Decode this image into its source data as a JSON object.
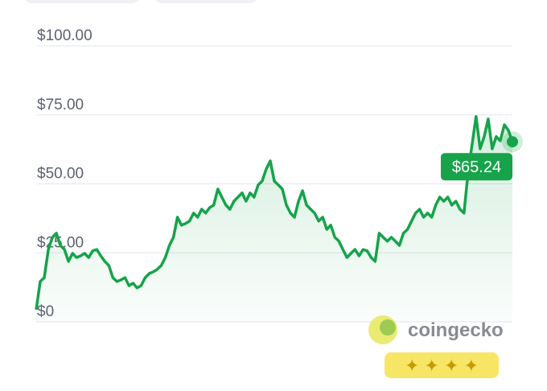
{
  "chart_data": {
    "type": "line",
    "values": [
      4.4,
      14.6,
      16.0,
      26.2,
      30.6,
      32.1,
      27.7,
      26.2,
      21.9,
      24.8,
      23.3,
      23.9,
      24.8,
      23.3,
      25.7,
      26.2,
      23.9,
      21.9,
      20.4,
      16.0,
      14.6,
      15.2,
      16.0,
      13.1,
      14.0,
      12.3,
      13.1,
      16.0,
      17.5,
      18.1,
      19.0,
      20.4,
      23.3,
      27.7,
      30.6,
      37.9,
      35.0,
      35.6,
      36.5,
      39.4,
      37.9,
      40.8,
      39.4,
      41.4,
      42.3,
      48.1,
      45.2,
      42.3,
      40.8,
      43.7,
      45.2,
      46.7,
      43.7,
      46.7,
      45.2,
      49.6,
      51.0,
      55.4,
      58.3,
      51.0,
      49.6,
      48.1,
      42.3,
      39.4,
      37.9,
      43.7,
      47.5,
      42.3,
      40.8,
      39.4,
      36.5,
      37.9,
      33.5,
      35.0,
      30.6,
      29.2,
      26.2,
      23.3,
      24.8,
      26.2,
      23.9,
      26.2,
      25.7,
      23.3,
      21.9,
      32.1,
      30.6,
      29.2,
      30.6,
      29.2,
      27.7,
      32.1,
      33.5,
      36.5,
      39.4,
      40.8,
      37.9,
      39.4,
      37.9,
      42.3,
      45.2,
      43.7,
      45.2,
      42.3,
      43.7,
      40.8,
      39.4,
      53.9,
      64.1,
      74.4,
      62.7,
      67.1,
      73.5,
      62.7,
      67.1,
      65.6,
      71.4,
      69.4,
      65.24
    ],
    "value_labels": [
      null,
      null,
      null,
      null,
      null,
      null,
      null,
      null,
      null,
      null,
      null,
      null,
      null,
      null,
      null,
      null,
      null,
      null,
      null,
      null,
      null,
      null,
      null,
      null,
      null,
      null,
      null,
      null,
      null,
      null,
      null,
      null,
      null,
      null,
      null,
      null,
      null,
      null,
      null,
      null,
      null,
      null,
      null,
      null,
      null,
      null,
      null,
      null,
      null,
      null,
      null,
      null,
      null,
      null,
      null,
      null,
      null,
      null,
      null,
      null,
      null,
      null,
      null,
      null,
      null,
      null,
      null,
      null,
      null,
      null,
      null,
      null,
      null,
      null,
      null,
      null,
      null,
      null,
      null,
      null,
      null,
      null,
      null,
      null,
      null,
      null,
      null,
      null,
      null,
      null,
      null,
      null,
      null,
      null,
      null,
      null,
      null,
      null,
      null,
      null,
      null,
      null,
      null,
      null,
      null,
      null,
      null,
      null,
      null,
      null,
      null,
      null,
      null,
      null,
      null,
      null,
      null,
      null,
      "$65.24"
    ],
    "color": "#16a34a",
    "ylim": [
      0,
      100
    ],
    "yticks": [
      {
        "value": 0,
        "label": "$0"
      },
      {
        "value": 25,
        "label": "$25.00"
      },
      {
        "value": 50,
        "label": "$50.00"
      },
      {
        "value": 75,
        "label": "$75.00"
      },
      {
        "value": 100,
        "label": "$100.00"
      }
    ],
    "grid": true,
    "watermark": "coingecko"
  }
}
